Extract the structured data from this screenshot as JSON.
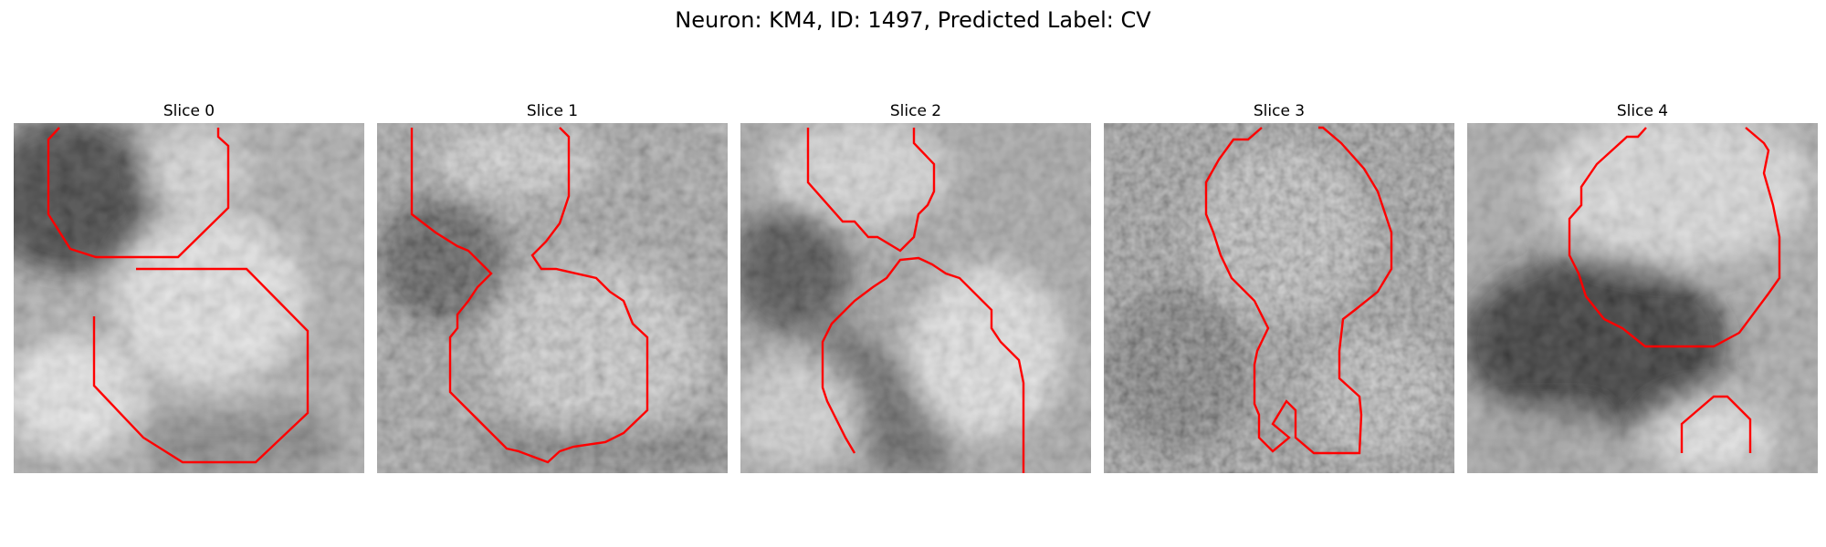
{
  "figure": {
    "title": "Neuron: KM4, ID: 1497, Predicted Label: CV",
    "contour_color": "#ff0000"
  },
  "panels": [
    {
      "title": "Slice 0"
    },
    {
      "title": "Slice 1"
    },
    {
      "title": "Slice 2"
    },
    {
      "title": "Slice 3"
    },
    {
      "title": "Slice 4"
    }
  ]
}
